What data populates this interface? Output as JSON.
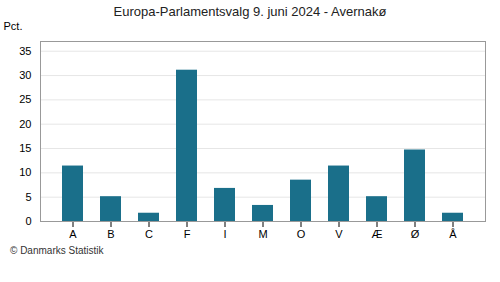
{
  "chart_data": {
    "type": "bar",
    "title": "Europa-Parlamentsvalg 9. juni 2024 - Avernakø",
    "categories": [
      "A",
      "B",
      "C",
      "F",
      "I",
      "M",
      "O",
      "V",
      "Æ",
      "Ø",
      "Å"
    ],
    "values": [
      11.4,
      5.1,
      1.7,
      31.1,
      6.8,
      3.3,
      8.5,
      11.4,
      5.1,
      14.7,
      1.7
    ],
    "color": "#1a6f8a",
    "ylabel": "Pct.",
    "ylim": [
      0,
      37
    ],
    "yticks": [
      0,
      5,
      10,
      15,
      20,
      25,
      30,
      35
    ],
    "grid": true,
    "caption": "© Danmarks Statistik"
  }
}
